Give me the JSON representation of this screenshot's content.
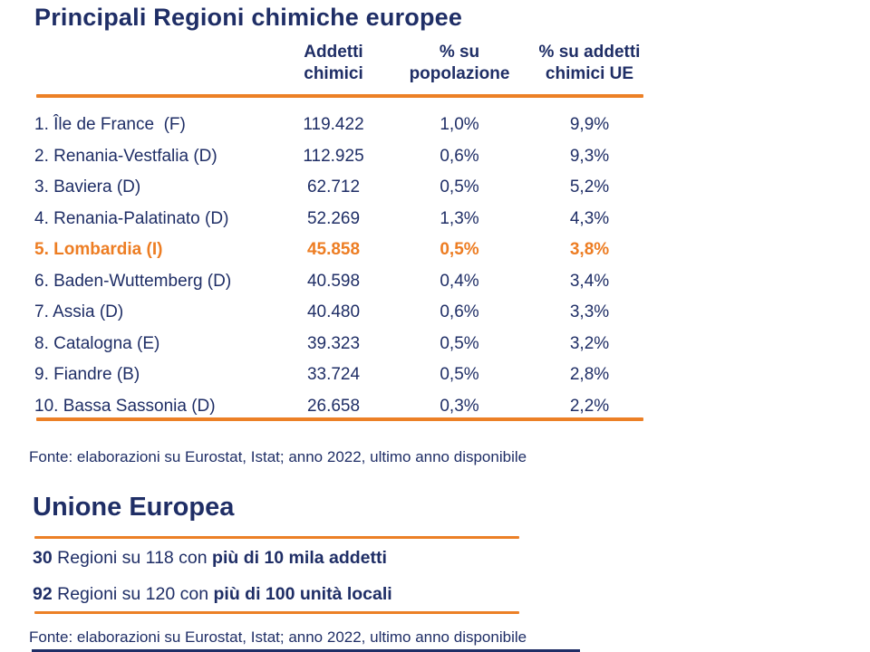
{
  "title": "Principali Regioni chimiche europee",
  "colors": {
    "navy_text": "#1F2E66",
    "orange_highlight": "#ED7D23",
    "orange_rule": "#EC8026",
    "background": "#FFFFFF"
  },
  "table": {
    "headers": [
      {
        "label": "Addetti\nchimici"
      },
      {
        "label": "% su\npopolazione"
      },
      {
        "label": "% su addetti\nchimici UE"
      }
    ],
    "rows": [
      {
        "region": "1. Île de France  (F)",
        "addetti": "119.422",
        "pct_popolazione": "1,0%",
        "pct_addetti_ue": "9,9%"
      },
      {
        "region": "2. Renania-Vestfalia (D)",
        "addetti": "112.925",
        "pct_popolazione": "0,6%",
        "pct_addetti_ue": "9,3%"
      },
      {
        "region": "3. Baviera (D)",
        "addetti": "62.712",
        "pct_popolazione": "0,5%",
        "pct_addetti_ue": "5,2%"
      },
      {
        "region": "4. Renania-Palatinato (D)",
        "addetti": "52.269",
        "pct_popolazione": "1,3%",
        "pct_addetti_ue": "4,3%"
      },
      {
        "region": "5. Lombardia (I)",
        "addetti": "45.858",
        "pct_popolazione": "0,5%",
        "pct_addetti_ue": "3,8%",
        "highlighted": true
      },
      {
        "region": "6. Baden-Wuttemberg (D)",
        "addetti": "40.598",
        "pct_popolazione": "0,4%",
        "pct_addetti_ue": "3,4%"
      },
      {
        "region": "7. Assia (D)",
        "addetti": "40.480",
        "pct_popolazione": "0,6%",
        "pct_addetti_ue": "3,3%"
      },
      {
        "region": "8. Catalogna (E)",
        "addetti": "39.323",
        "pct_popolazione": "0,5%",
        "pct_addetti_ue": "3,2%"
      },
      {
        "region": "9. Fiandre (B)",
        "addetti": "33.724",
        "pct_popolazione": "0,5%",
        "pct_addetti_ue": "2,8%"
      },
      {
        "region": "10. Bassa Sassonia (D)",
        "addetti": "26.658",
        "pct_popolazione": "0,3%",
        "pct_addetti_ue": "2,2%"
      }
    ],
    "fonte": "Fonte: elaborazioni su Eurostat, Istat; anno 2022, ultimo anno disponibile"
  },
  "eu_section": {
    "title": "Unione Europea",
    "stats": [
      {
        "value": "30",
        "middle": " Regioni su 118 con ",
        "bold": "più di 10 mila addetti"
      },
      {
        "value": "92",
        "middle": " Regioni su 120 con ",
        "bold": "più di 100 unità locali"
      }
    ],
    "fonte": "Fonte: elaborazioni su Eurostat, Istat; anno 2022, ultimo anno disponibile"
  }
}
